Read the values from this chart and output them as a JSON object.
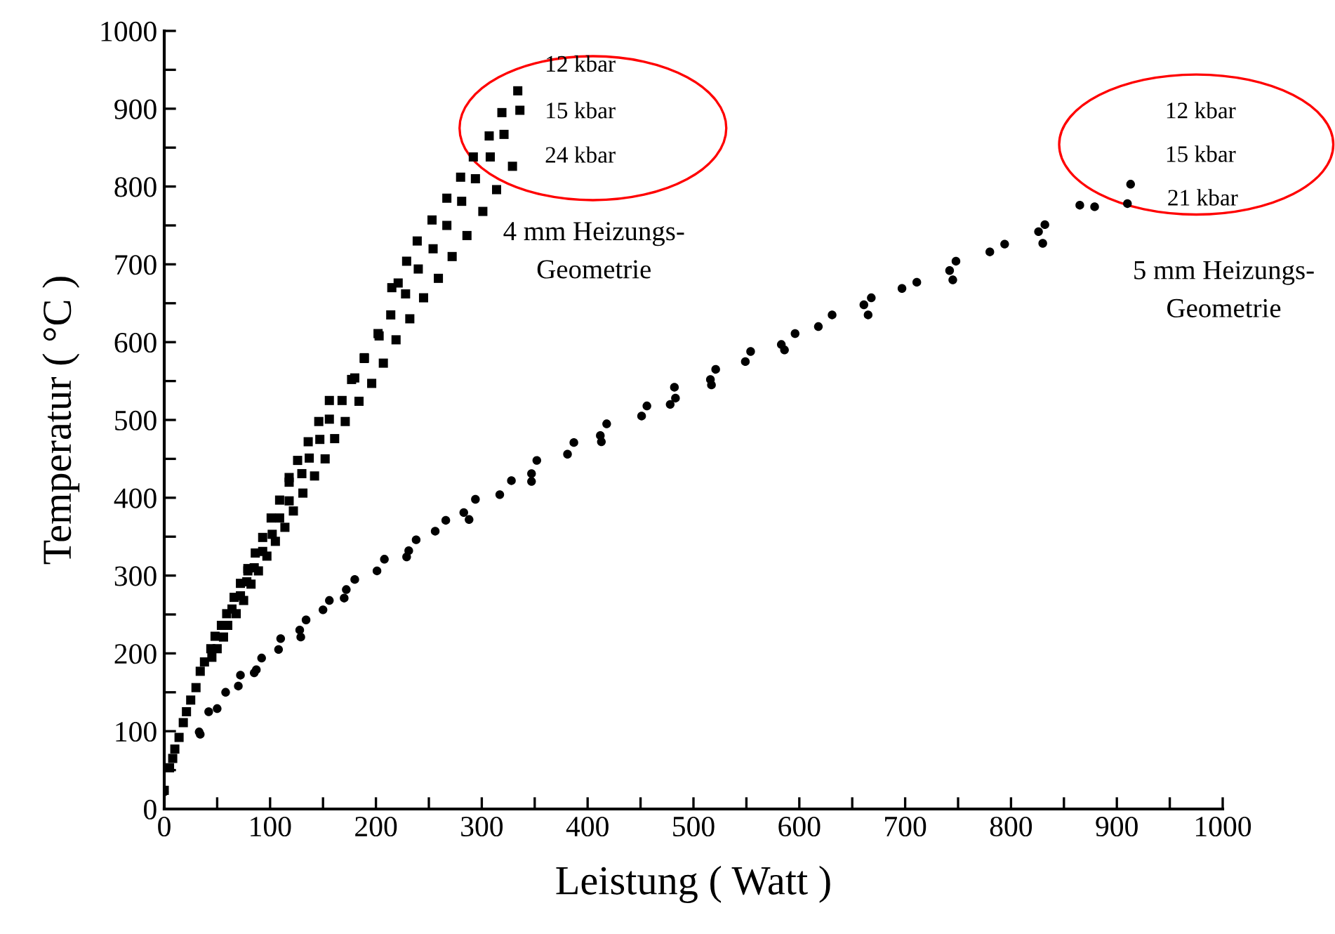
{
  "chart_data": {
    "type": "scatter",
    "xlabel": "Leistung ( Watt )",
    "ylabel": "Temperatur ( °C )",
    "xlim": [
      0,
      1000
    ],
    "ylim": [
      0,
      1000
    ],
    "xticks": [
      0,
      {
        "value": 50,
        "label": null
      },
      100,
      {
        "value": 150,
        "label": null
      },
      200,
      {
        "value": 250,
        "label": null
      },
      300,
      {
        "value": 350,
        "label": null
      },
      400,
      {
        "value": 450,
        "label": null
      },
      500,
      {
        "value": 550,
        "label": null
      },
      600,
      {
        "value": 650,
        "label": null
      },
      700,
      {
        "value": 750,
        "label": null
      },
      800,
      {
        "value": 850,
        "label": null
      },
      900,
      {
        "value": 950,
        "label": null
      },
      1000
    ],
    "yticks": [
      0,
      {
        "value": 50,
        "label": null
      },
      100,
      {
        "value": 150,
        "label": null
      },
      200,
      {
        "value": 250,
        "label": null
      },
      300,
      {
        "value": 350,
        "label": null
      },
      400,
      {
        "value": 450,
        "label": null
      },
      500,
      {
        "value": 550,
        "label": null
      },
      600,
      {
        "value": 650,
        "label": null
      },
      700,
      {
        "value": 750,
        "label": null
      },
      800,
      {
        "value": 850,
        "label": null
      },
      900,
      {
        "value": 950,
        "label": null
      },
      1000
    ],
    "grid": false,
    "legend": false,
    "annotations": [
      "12 kbar",
      "15 kbar",
      "24 kbar",
      "4 mm Heizungs-\nGeometrie",
      "12 kbar",
      "15 kbar",
      "21 kbar",
      "5 mm Heizungs-\nGeometrie"
    ],
    "series": [
      {
        "color": "#000000",
        "marker": "square",
        "x": [
          0,
          5,
          8,
          10,
          14,
          18,
          21,
          25,
          30,
          34,
          38,
          45,
          44,
          50,
          48,
          56,
          54,
          60,
          59,
          68,
          64,
          66,
          75,
          72,
          72,
          82,
          78,
          79,
          89,
          85,
          79,
          97,
          93,
          86,
          105,
          102,
          93,
          114,
          109,
          101,
          122,
          109,
          118,
          131,
          118,
          142,
          130,
          118,
          152,
          137,
          126,
          161,
          147,
          136,
          171,
          156,
          146,
          184,
          168,
          156,
          196,
          180,
          177,
          207,
          189,
          189,
          219,
          203,
          202,
          232,
          214,
          245,
          228,
          221,
          215,
          259,
          240,
          229,
          272,
          254,
          239,
          286,
          267,
          253,
          301,
          281,
          267,
          314,
          294,
          280,
          329,
          292,
          308,
          307,
          321,
          319,
          336,
          334
        ],
        "values": [
          24,
          53,
          65,
          77,
          92,
          111,
          125,
          140,
          156,
          177,
          189,
          195,
          206,
          206,
          222,
          221,
          236,
          236,
          251,
          251,
          257,
          272,
          268,
          274,
          290,
          289,
          292,
          306,
          306,
          310,
          309,
          325,
          331,
          329,
          344,
          353,
          349,
          362,
          374,
          374,
          383,
          397,
          396,
          406,
          420,
          428,
          431,
          426,
          450,
          451,
          448,
          476,
          475,
          472,
          498,
          501,
          498,
          524,
          525,
          525,
          547,
          554,
          552,
          573,
          580,
          579,
          603,
          608,
          611,
          630,
          635,
          657,
          662,
          676,
          670,
          682,
          694,
          704,
          710,
          720,
          730,
          737,
          750,
          757,
          768,
          781,
          785,
          796,
          810,
          812,
          826,
          838,
          838,
          865,
          867,
          895,
          898,
          923
        ]
      },
      {
        "color": "#000000",
        "marker": "circle",
        "x": [
          0,
          34,
          33,
          42,
          50,
          58,
          70,
          72,
          85,
          87,
          92,
          108,
          110,
          128,
          129,
          134,
          150,
          156,
          170,
          172,
          180,
          201,
          208,
          229,
          231,
          238,
          256,
          266,
          283,
          288,
          294,
          317,
          328,
          347,
          347,
          352,
          381,
          387,
          412,
          413,
          418,
          451,
          456,
          478,
          483,
          482,
          516,
          517,
          521,
          549,
          554,
          583,
          586,
          596,
          618,
          631,
          661,
          665,
          668,
          697,
          711,
          742,
          745,
          748,
          780,
          794,
          826,
          830,
          832,
          865,
          879,
          910,
          913
        ],
        "values": [
          22,
          96,
          99,
          125,
          129,
          150,
          158,
          172,
          175,
          179,
          194,
          205,
          219,
          230,
          221,
          243,
          256,
          268,
          271,
          282,
          295,
          306,
          321,
          324,
          332,
          346,
          357,
          371,
          381,
          372,
          398,
          404,
          422,
          431,
          421,
          448,
          456,
          471,
          480,
          472,
          495,
          505,
          518,
          520,
          528,
          542,
          552,
          545,
          565,
          575,
          588,
          597,
          590,
          611,
          620,
          635,
          648,
          635,
          657,
          669,
          677,
          692,
          680,
          704,
          716,
          726,
          742,
          727,
          751,
          776,
          774,
          778,
          803
        ]
      }
    ]
  }
}
